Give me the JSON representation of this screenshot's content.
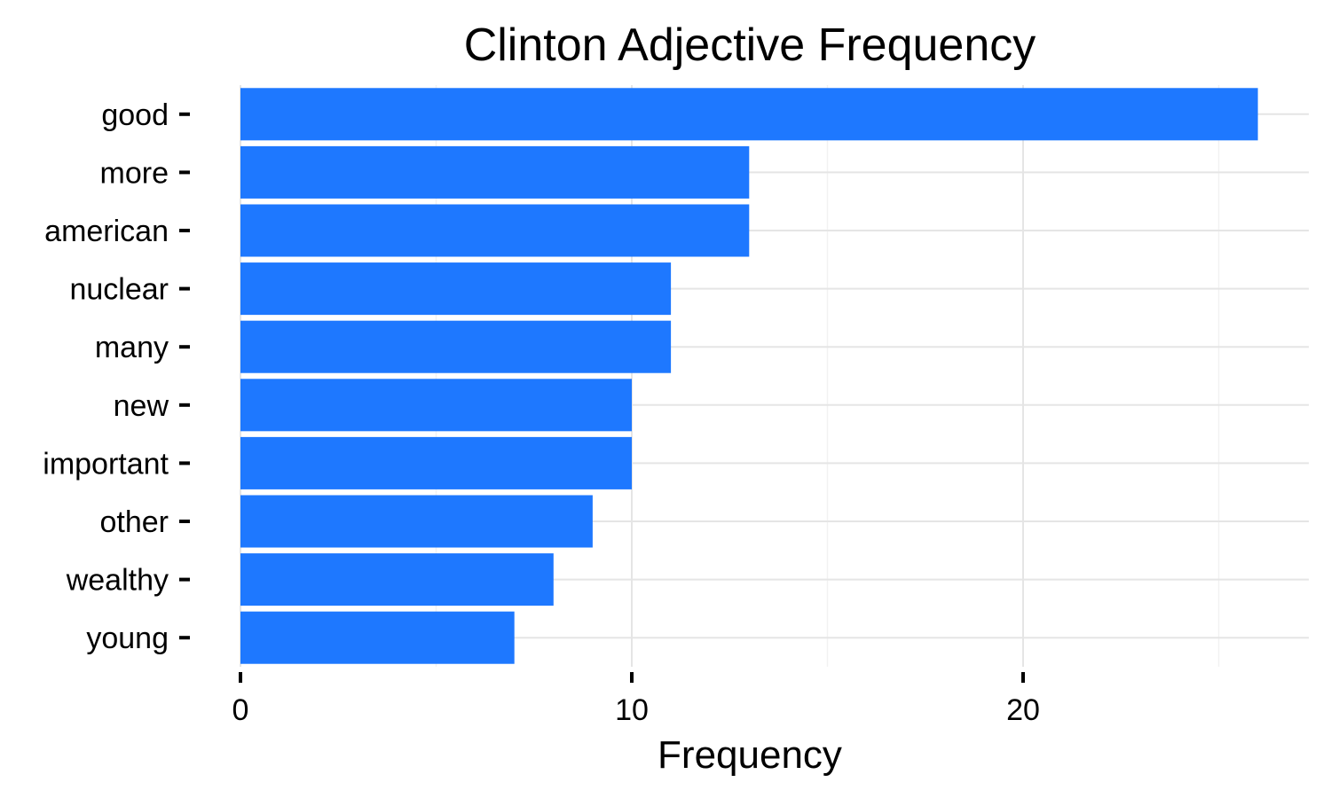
{
  "chart_data": {
    "type": "bar",
    "orientation": "horizontal",
    "title": "Clinton Adjective Frequency",
    "xlabel": "Frequency",
    "ylabel": "",
    "categories": [
      "good",
      "more",
      "american",
      "nuclear",
      "many",
      "new",
      "important",
      "other",
      "wealthy",
      "young"
    ],
    "values": [
      26,
      13,
      13,
      11,
      11,
      10,
      10,
      9,
      8,
      7
    ],
    "xlim": [
      0,
      27.3
    ],
    "xticks": [
      0,
      10,
      20
    ],
    "xtick_labels": [
      "0",
      "10",
      "20"
    ],
    "grid": true,
    "legend": "none",
    "bar_color": "#1e78ff",
    "grid_color": "#e5e5e5",
    "minor_grid_color": "#f2f2f2"
  }
}
